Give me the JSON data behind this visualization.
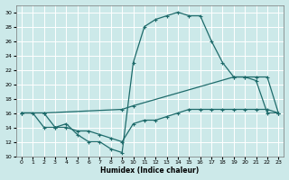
{
  "bg_color": "#cce9e9",
  "grid_color": "#b0d8d8",
  "line_color": "#1e6b6b",
  "xlabel": "Humidex (Indice chaleur)",
  "xlim": [
    -0.5,
    23.5
  ],
  "ylim": [
    10,
    31
  ],
  "yticks": [
    10,
    12,
    14,
    16,
    18,
    20,
    22,
    24,
    26,
    28,
    30
  ],
  "xticks": [
    0,
    1,
    2,
    3,
    4,
    5,
    6,
    7,
    8,
    9,
    10,
    11,
    12,
    13,
    14,
    15,
    16,
    17,
    18,
    19,
    20,
    21,
    22,
    23
  ],
  "curve1_x": [
    0,
    1,
    2,
    3,
    4,
    5,
    6,
    7,
    8,
    9,
    10,
    11,
    12,
    13,
    14,
    15,
    16,
    17,
    18,
    19,
    20,
    21,
    22,
    23
  ],
  "curve1_y": [
    16,
    16,
    14,
    14,
    14.5,
    13,
    12,
    12,
    11,
    10.5,
    23,
    28,
    29,
    29.5,
    30,
    29.5,
    29.5,
    26,
    23,
    21,
    21,
    20.5,
    16,
    16
  ],
  "curve2_x": [
    0,
    2,
    9,
    10,
    19,
    20,
    21,
    22,
    23
  ],
  "curve2_y": [
    16,
    16,
    16.5,
    17,
    21,
    21,
    21,
    21,
    16
  ],
  "curve3_x": [
    0,
    2,
    3,
    4,
    5,
    6,
    7,
    8,
    9,
    10,
    11,
    12,
    13,
    14,
    15,
    16,
    17,
    18,
    19,
    20,
    21,
    22,
    23
  ],
  "curve3_y": [
    16,
    16,
    14,
    14,
    13.5,
    13.5,
    13,
    12.5,
    12,
    14.5,
    15,
    15,
    15.5,
    16,
    16.5,
    16.5,
    16.5,
    16.5,
    16.5,
    16.5,
    16.5,
    16.5,
    16
  ]
}
